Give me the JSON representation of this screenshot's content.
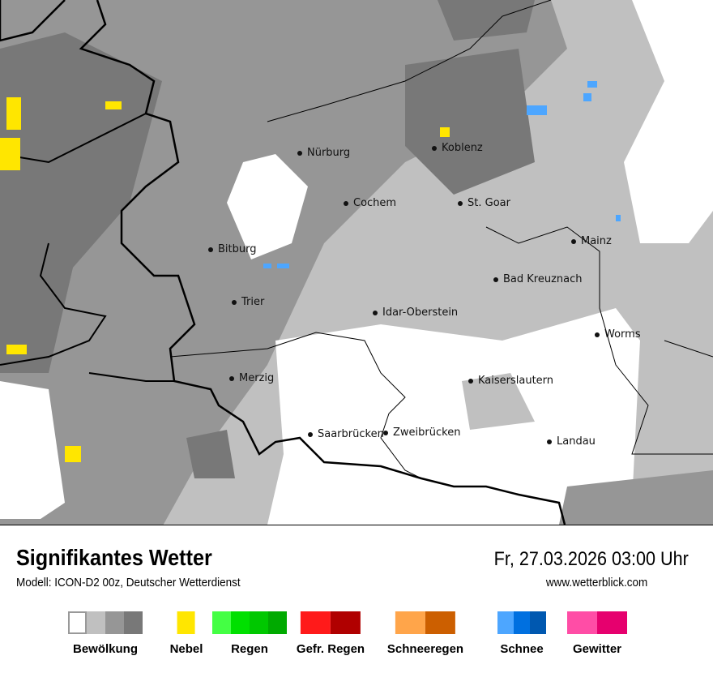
{
  "map": {
    "cities": [
      {
        "name": "Nürburg"
      },
      {
        "name": "Koblenz"
      },
      {
        "name": "Cochem"
      },
      {
        "name": "St. Goar"
      },
      {
        "name": "Mainz"
      },
      {
        "name": "Bitburg"
      },
      {
        "name": "Bad Kreuznach"
      },
      {
        "name": "Trier"
      },
      {
        "name": "Idar-Oberstein"
      },
      {
        "name": "Worms"
      },
      {
        "name": "Merzig"
      },
      {
        "name": "Kaiserslautern"
      },
      {
        "name": "Saarbrücken"
      },
      {
        "name": "Zweibrücken"
      },
      {
        "name": "Landau"
      }
    ]
  },
  "header": {
    "title": "Signifikantes Wetter",
    "model": "Modell: ICON-D2 00z, Deutscher Wetterdienst",
    "datetime": "Fr, 27.03.2026 03:00 Uhr",
    "website": "www.wetterblick.com"
  },
  "legend": [
    {
      "label": "Bewölkung",
      "colors": [
        "#ffffff",
        "#c0c0c0",
        "#969696",
        "#787878"
      ]
    },
    {
      "label": "Nebel",
      "colors": [
        "#ffe600"
      ]
    },
    {
      "label": "Regen",
      "colors": [
        "#44ff44",
        "#00e000",
        "#00c800",
        "#00aa00"
      ]
    },
    {
      "label": "Gefr. Regen",
      "colors": [
        "#ff1a1a",
        "#b00000"
      ]
    },
    {
      "label": "Schneeregen",
      "colors": [
        "#ffa54a",
        "#cc5f00"
      ]
    },
    {
      "label": "Schnee",
      "colors": [
        "#4da6ff",
        "#0070e0",
        "#0058b0"
      ]
    },
    {
      "label": "Gewitter",
      "colors": [
        "#ff4da6",
        "#e6006e"
      ]
    }
  ]
}
